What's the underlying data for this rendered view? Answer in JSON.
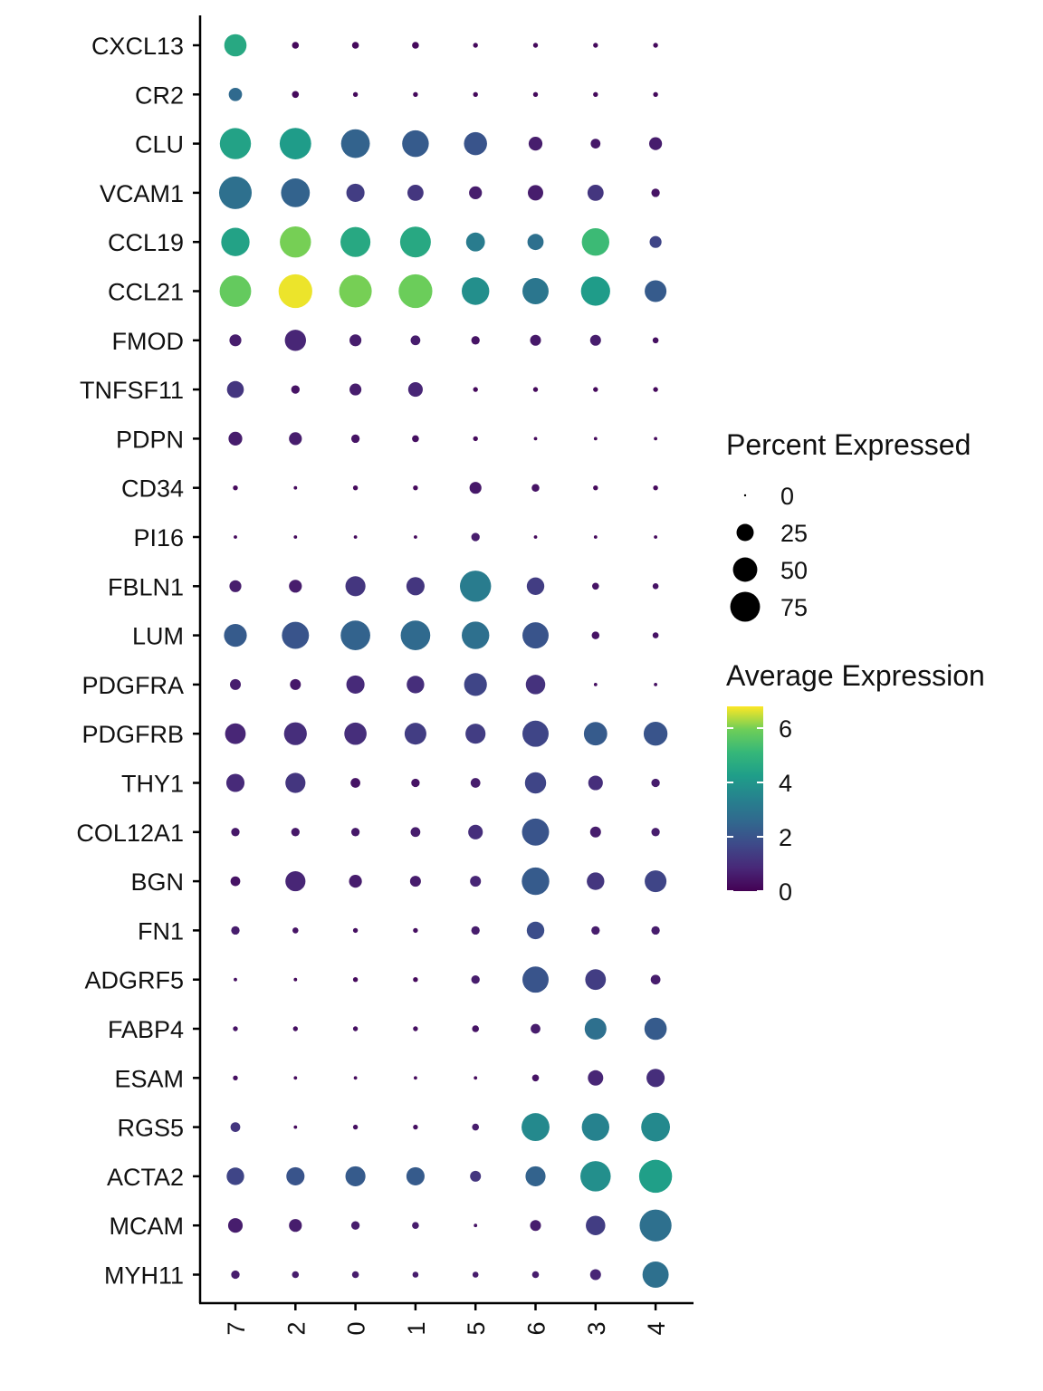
{
  "chart_data": {
    "type": "dotplot",
    "title": "",
    "xlabel": "",
    "ylabel": "",
    "categories_x": [
      "7",
      "2",
      "0",
      "1",
      "5",
      "6",
      "3",
      "4"
    ],
    "categories_y": [
      "CXCL13",
      "CR2",
      "CLU",
      "VCAM1",
      "CCL19",
      "CCL21",
      "FMOD",
      "TNFSF11",
      "PDPN",
      "CD34",
      "PI16",
      "FBLN1",
      "LUM",
      "PDGFRA",
      "PDGFRB",
      "THY1",
      "COL12A1",
      "BGN",
      "FN1",
      "ADGRF5",
      "FABP4",
      "ESAM",
      "RGS5",
      "ACTA2",
      "MCAM",
      "MYH11"
    ],
    "percent_expressed": [
      [
        42,
        4,
        4,
        4,
        2,
        2,
        2,
        2
      ],
      [
        15,
        4,
        2,
        2,
        2,
        2,
        2,
        2
      ],
      [
        82,
        84,
        70,
        60,
        45,
        16,
        8,
        14
      ],
      [
        90,
        70,
        28,
        22,
        14,
        20,
        22,
        6
      ],
      [
        68,
        82,
        76,
        80,
        30,
        22,
        64,
        12
      ],
      [
        84,
        96,
        90,
        96,
        64,
        58,
        72,
        40
      ],
      [
        12,
        38,
        12,
        8,
        6,
        10,
        10,
        3
      ],
      [
        24,
        6,
        12,
        18,
        2,
        2,
        2,
        2
      ],
      [
        16,
        14,
        6,
        4,
        2,
        1,
        1,
        1
      ],
      [
        2,
        1,
        2,
        2,
        12,
        5,
        2,
        2
      ],
      [
        1,
        1,
        1,
        1,
        6,
        1,
        1,
        1
      ],
      [
        12,
        14,
        34,
        28,
        82,
        26,
        4,
        3
      ],
      [
        44,
        62,
        74,
        74,
        64,
        58,
        5,
        3
      ],
      [
        10,
        10,
        28,
        26,
        44,
        32,
        1,
        1
      ],
      [
        36,
        44,
        42,
        40,
        34,
        58,
        46,
        48
      ],
      [
        28,
        34,
        8,
        6,
        8,
        38,
        18,
        6
      ],
      [
        6,
        6,
        6,
        8,
        18,
        62,
        10,
        6
      ],
      [
        8,
        34,
        14,
        10,
        10,
        64,
        26,
        40
      ],
      [
        6,
        3,
        2,
        2,
        6,
        26,
        6,
        6
      ],
      [
        1,
        1,
        2,
        2,
        6,
        58,
        36,
        8
      ],
      [
        2,
        2,
        2,
        2,
        4,
        8,
        40,
        42
      ],
      [
        2,
        1,
        1,
        1,
        1,
        4,
        20,
        28
      ],
      [
        8,
        1,
        2,
        2,
        4,
        66,
        64,
        70
      ],
      [
        26,
        28,
        34,
        28,
        10,
        34,
        78,
        92
      ],
      [
        18,
        14,
        6,
        4,
        1,
        10,
        32,
        86
      ],
      [
        6,
        4,
        4,
        3,
        3,
        4,
        10,
        58
      ]
    ],
    "average_expression": [
      [
        4.6,
        0.2,
        0.2,
        0.2,
        0.2,
        0.2,
        0.2,
        0.2
      ],
      [
        2.6,
        0.2,
        0.2,
        0.2,
        0.2,
        0.2,
        0.2,
        0.2
      ],
      [
        4.4,
        4.2,
        2.4,
        2.2,
        2.0,
        0.6,
        0.5,
        0.6
      ],
      [
        2.8,
        2.4,
        1.4,
        1.2,
        0.6,
        0.6,
        1.2,
        0.4
      ],
      [
        4.4,
        6.0,
        4.6,
        4.6,
        3.2,
        2.8,
        5.2,
        1.6
      ],
      [
        5.8,
        6.7,
        6.0,
        5.9,
        3.8,
        3.0,
        4.2,
        2.2
      ],
      [
        0.6,
        0.8,
        0.6,
        0.6,
        0.4,
        0.5,
        0.6,
        0.3
      ],
      [
        1.2,
        0.4,
        0.6,
        0.8,
        0.2,
        0.2,
        0.2,
        0.2
      ],
      [
        0.6,
        0.6,
        0.4,
        0.3,
        0.2,
        0.2,
        0.2,
        0.2
      ],
      [
        0.2,
        0.2,
        0.2,
        0.2,
        0.5,
        0.4,
        0.2,
        0.2
      ],
      [
        0.2,
        0.2,
        0.2,
        0.2,
        0.6,
        0.2,
        0.2,
        0.2
      ],
      [
        0.6,
        0.6,
        1.2,
        1.2,
        3.2,
        1.4,
        0.4,
        0.4
      ],
      [
        2.2,
        2.0,
        2.4,
        2.6,
        2.8,
        2.0,
        0.4,
        0.4
      ],
      [
        0.6,
        0.5,
        0.9,
        1.0,
        1.6,
        1.1,
        0.3,
        0.3
      ],
      [
        0.8,
        1.0,
        1.0,
        1.4,
        1.4,
        1.6,
        2.2,
        2.0
      ],
      [
        0.9,
        1.2,
        0.4,
        0.4,
        0.6,
        1.6,
        1.0,
        0.6
      ],
      [
        0.5,
        0.5,
        0.5,
        0.6,
        1.0,
        2.0,
        0.6,
        0.6
      ],
      [
        0.4,
        0.8,
        0.6,
        0.6,
        0.8,
        2.2,
        1.2,
        1.6
      ],
      [
        0.6,
        0.4,
        0.3,
        0.3,
        0.6,
        1.8,
        0.6,
        0.6
      ],
      [
        0.3,
        0.2,
        0.2,
        0.2,
        0.6,
        2.0,
        1.4,
        0.6
      ],
      [
        0.4,
        0.3,
        0.3,
        0.3,
        0.4,
        0.6,
        2.8,
        2.2
      ],
      [
        0.3,
        0.2,
        0.2,
        0.2,
        0.2,
        0.4,
        0.8,
        1.0
      ],
      [
        1.2,
        0.2,
        0.3,
        0.3,
        0.6,
        3.6,
        3.4,
        3.6
      ],
      [
        1.6,
        2.0,
        2.2,
        2.2,
        1.2,
        2.4,
        3.8,
        4.3
      ],
      [
        0.6,
        0.6,
        0.6,
        0.6,
        0.4,
        0.6,
        1.4,
        2.8
      ],
      [
        0.6,
        0.6,
        0.6,
        0.6,
        0.6,
        0.6,
        0.8,
        2.8
      ]
    ],
    "size_legend": {
      "title": "Percent Expressed",
      "values": [
        0,
        25,
        50,
        75
      ],
      "labels": [
        "0",
        "25",
        "50",
        "75"
      ]
    },
    "color_legend": {
      "title": "Average Expression",
      "range": [
        0,
        6.8
      ],
      "ticks": [
        0,
        2,
        4,
        6
      ],
      "labels": [
        "0",
        "2",
        "4",
        "6"
      ],
      "colormap": "viridis"
    },
    "grid": false
  }
}
